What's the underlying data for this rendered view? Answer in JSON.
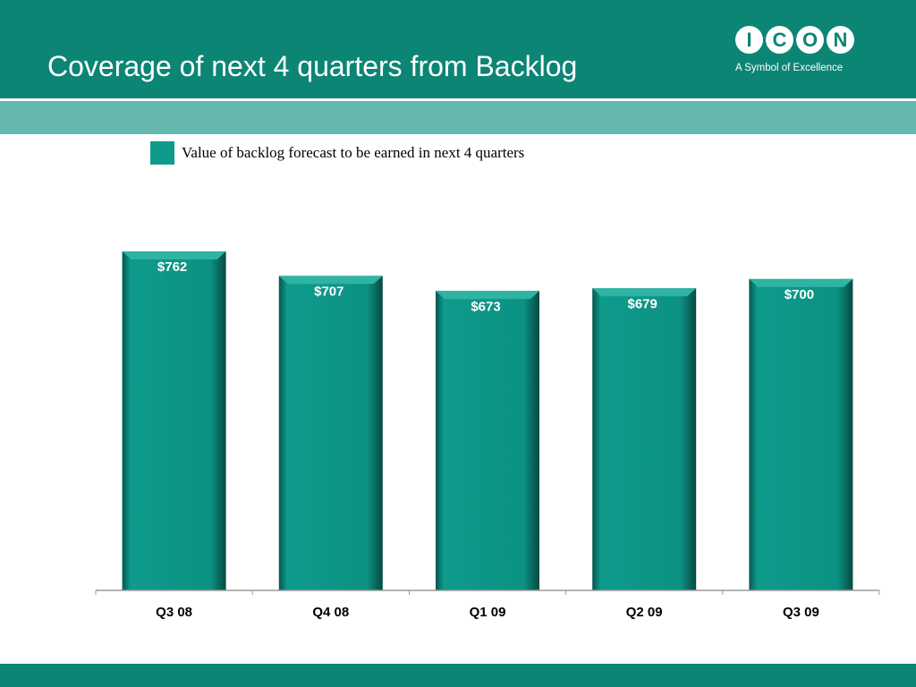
{
  "slide": {
    "title": "Coverage of next 4 quarters from Backlog",
    "logo": {
      "letters": [
        "I",
        "C",
        "O",
        "N"
      ],
      "tagline": "A Symbol of Excellence"
    }
  },
  "colors": {
    "header": "#0d8575",
    "band": "#65b8ae",
    "bar": "#0e9b8c",
    "bar_dark": "#06574e",
    "bar_light": "#2fb3a3"
  },
  "chart_data": {
    "type": "bar",
    "categories": [
      "Q3 08",
      "Q4 08",
      "Q1 09",
      "Q2 09",
      "Q3 09"
    ],
    "values": [
      762,
      707,
      673,
      679,
      700
    ],
    "value_labels": [
      "$762",
      "$707",
      "$673",
      "$679",
      "$700"
    ],
    "series": [
      {
        "name": "Value of backlog forecast to be earned in next 4 quarters",
        "values": [
          762,
          707,
          673,
          679,
          700
        ]
      }
    ],
    "legend_position": "top",
    "grid": false,
    "ylim": [
      0,
      762
    ]
  }
}
